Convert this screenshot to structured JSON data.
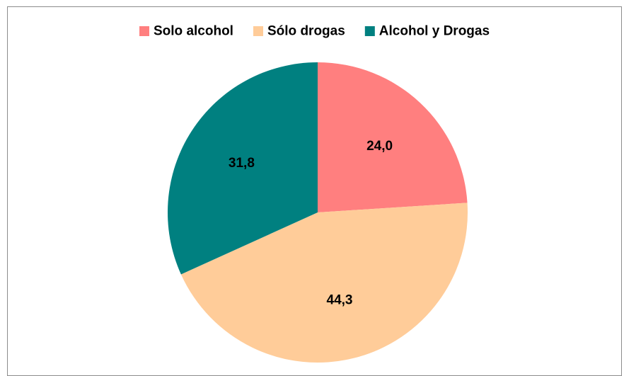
{
  "chart_data": {
    "type": "pie",
    "title": "",
    "slices": [
      {
        "name": "Solo alcohol",
        "value": 24.0,
        "label": "24,0",
        "color": "#FF7F7F"
      },
      {
        "name": "Sólo drogas",
        "value": 44.3,
        "label": "44,3",
        "color": "#FFCC99"
      },
      {
        "name": "Alcohol y Drogas",
        "value": 31.8,
        "label": "31,8",
        "color": "#008080"
      }
    ],
    "legend_position": "top",
    "start_angle": "12 o'clock",
    "direction": "clockwise"
  }
}
